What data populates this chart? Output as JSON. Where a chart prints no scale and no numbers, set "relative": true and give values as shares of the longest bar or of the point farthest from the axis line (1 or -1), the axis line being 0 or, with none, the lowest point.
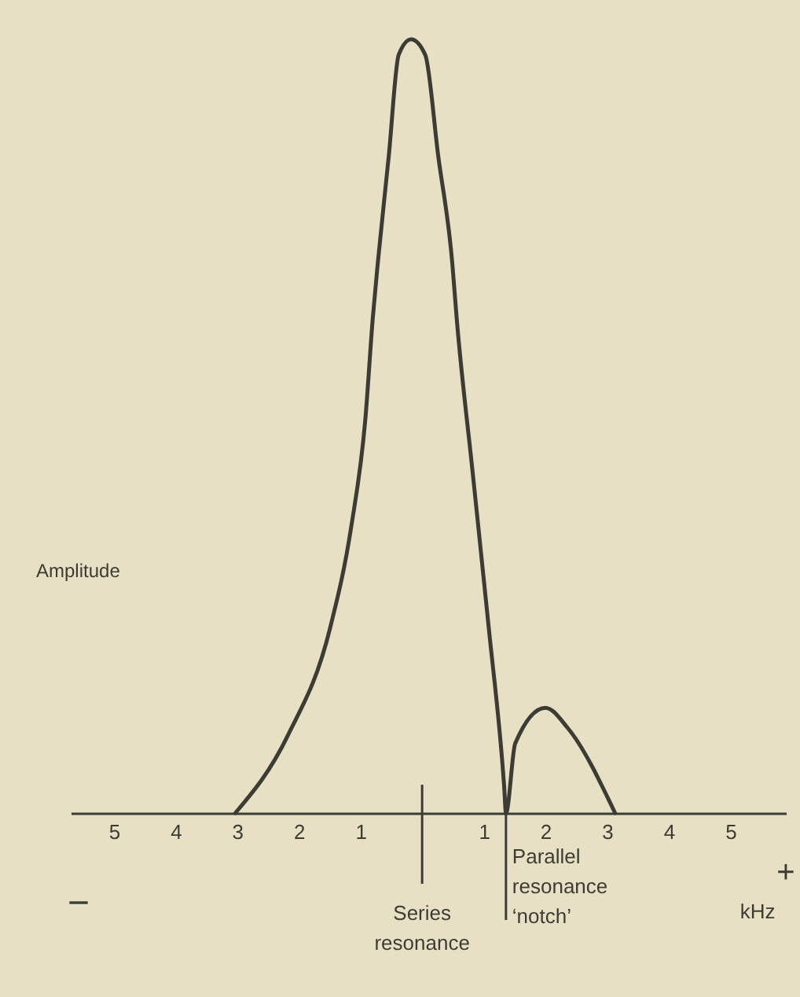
{
  "chart_data": {
    "type": "line",
    "relative": true,
    "xlabel": "kHz",
    "ylabel": "Amplitude",
    "x": [
      -3.03,
      -2.18,
      -1.49,
      -1.15,
      -0.92,
      -0.8,
      -0.72,
      -0.54,
      -0.38,
      -0.18,
      0.05,
      0.26,
      0.49,
      0.56,
      0.82,
      1.08,
      1.33,
      1.36,
      1.51,
      2.0,
      2.36,
      3.13
    ],
    "series": [
      {
        "color": "#3c3c34",
        "values": [
          0,
          0.1,
          0.24,
          0.37,
          0.51,
          0.64,
          0.71,
          0.85,
          0.98,
          1.0,
          0.98,
          0.85,
          0.71,
          0.64,
          0.44,
          0.24,
          0.035,
          0,
          0.09,
          0.136,
          0.11,
          0
        ]
      }
    ],
    "xlim": [
      -5.7,
      5.9
    ],
    "xticks": [
      {
        "value": -5,
        "label": "5"
      },
      {
        "value": -4,
        "label": "4"
      },
      {
        "value": -3,
        "label": "3"
      },
      {
        "value": -2,
        "label": "2"
      },
      {
        "value": -1,
        "label": "1"
      },
      {
        "value": 1,
        "label": "1"
      },
      {
        "value": 2,
        "label": "2"
      },
      {
        "value": 3,
        "label": "3"
      },
      {
        "value": 4,
        "label": "4"
      },
      {
        "value": 5,
        "label": "5"
      }
    ],
    "ref_lines": [
      {
        "axis": "x",
        "value": 0,
        "label": "Series resonance"
      },
      {
        "axis": "x",
        "value": 1.36,
        "label": "Parallel resonance ‘notch’"
      }
    ],
    "annotations": [
      "−",
      "+"
    ],
    "grid": false,
    "marker": "none",
    "line_style": "solid"
  }
}
